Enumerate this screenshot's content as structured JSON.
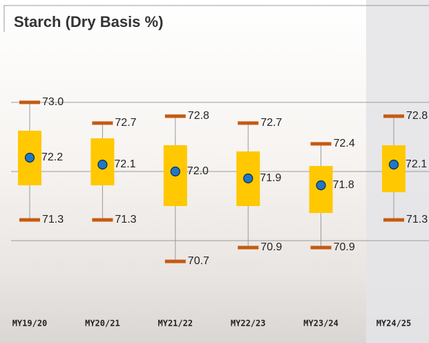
{
  "chart_data": {
    "type": "box",
    "title": "Starch (Dry Basis %)",
    "categories": [
      "MY19/20",
      "MY20/21",
      "MY21/22",
      "MY22/23",
      "MY23/24",
      "MY24/25"
    ],
    "max": [
      73.0,
      72.7,
      72.8,
      72.7,
      72.4,
      72.8
    ],
    "max_labels": [
      "73.0",
      "72.7",
      "72.8",
      "72.7",
      "72.4",
      "72.8"
    ],
    "q3": [
      72.59,
      72.48,
      72.38,
      72.29,
      72.08,
      72.38
    ],
    "mean": [
      72.2,
      72.1,
      72.0,
      71.9,
      71.8,
      72.1
    ],
    "mean_labels": [
      "72.2",
      "72.1",
      "72.0",
      "71.9",
      "71.8",
      "72.1"
    ],
    "q1": [
      71.8,
      71.8,
      71.5,
      71.5,
      71.4,
      71.7
    ],
    "min": [
      71.3,
      71.3,
      70.7,
      70.9,
      70.9,
      71.3
    ],
    "min_labels": [
      "71.3",
      "71.3",
      "70.7",
      "70.9",
      "70.9",
      "71.3"
    ],
    "ylim": [
      70,
      74
    ],
    "yticks": [
      71,
      72,
      73
    ],
    "grid": true,
    "box_color": "#ffc800",
    "cap_color": "#c55a11",
    "mean_color": "#1f77c8"
  }
}
